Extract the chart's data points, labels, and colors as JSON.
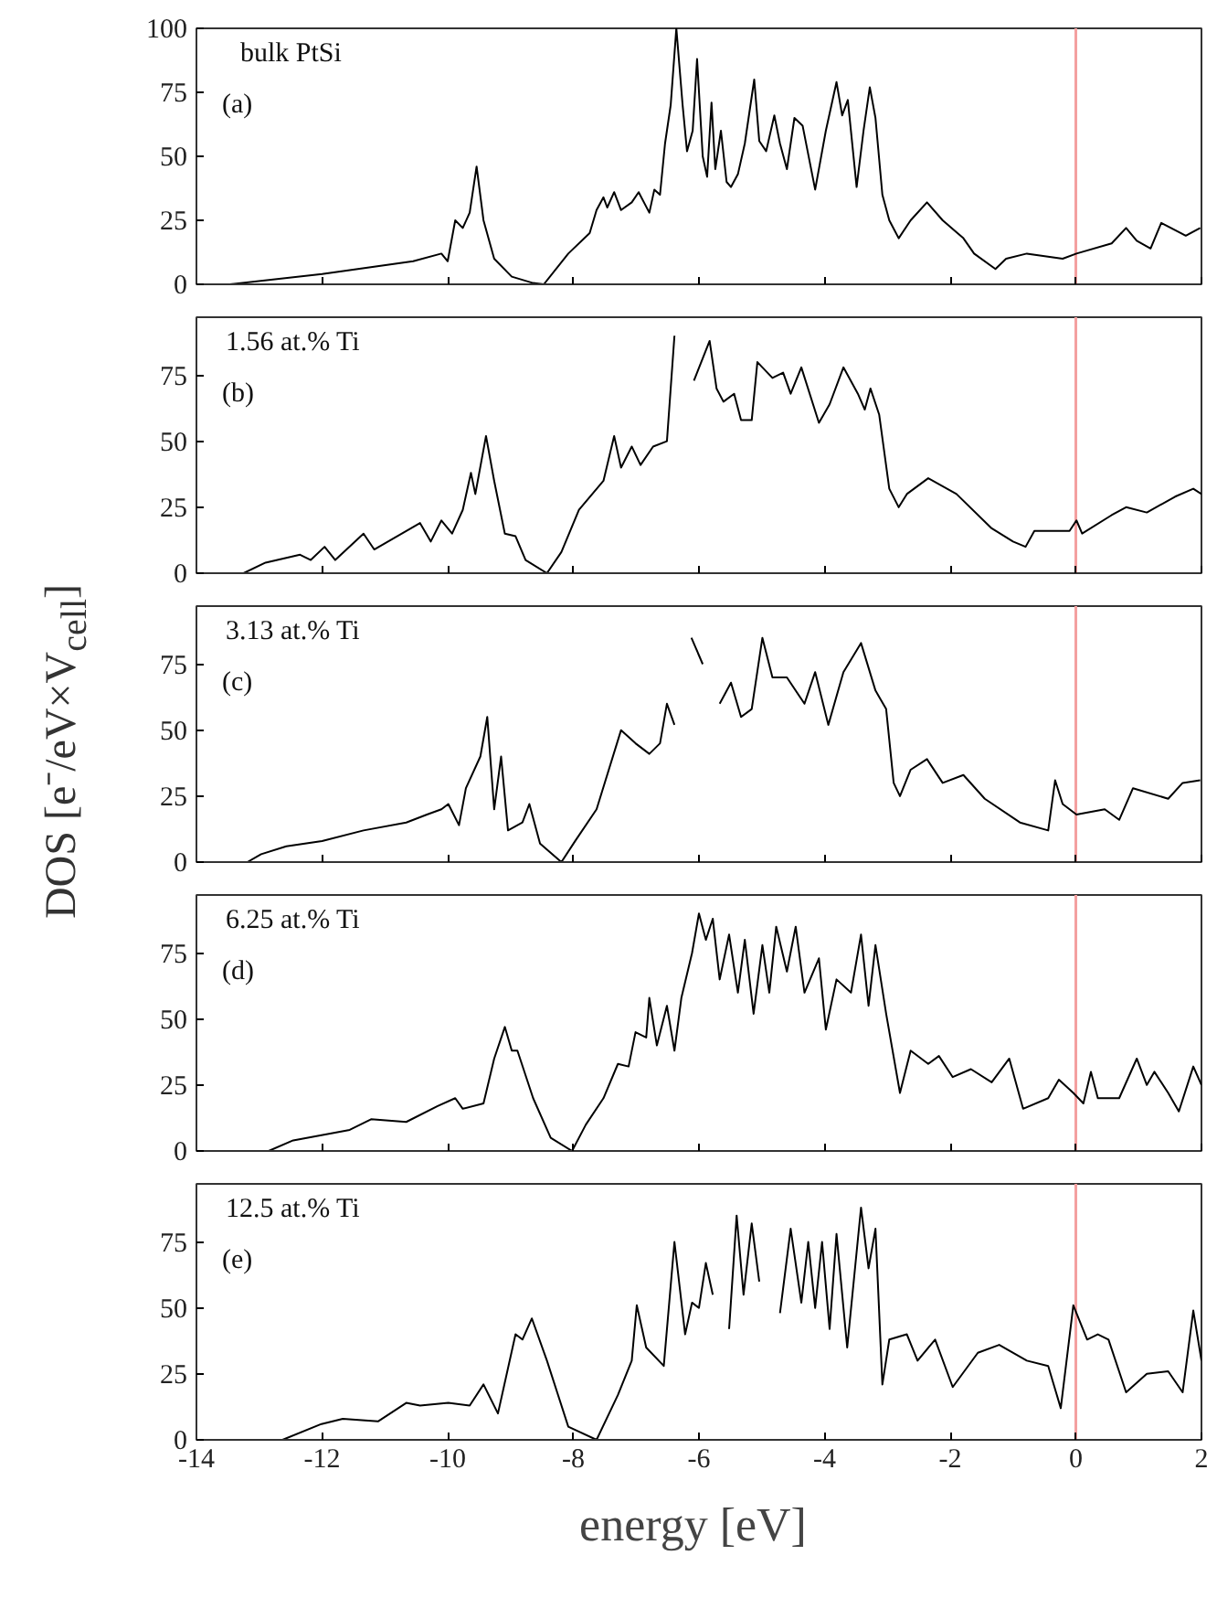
{
  "chart_data": [
    {
      "type": "line",
      "annotations": [
        "bulk PtSi",
        "(a)"
      ],
      "xlim": [
        -14,
        2
      ],
      "xticks": [
        -14,
        -12,
        -10,
        -8,
        -6,
        -4,
        -2,
        0,
        2
      ],
      "ylim": [
        0,
        100
      ],
      "yticks": [
        0,
        25,
        50,
        75,
        100
      ],
      "tick_labels": "y",
      "grid": false,
      "ref_lines": [
        {
          "axis": "x",
          "value": 0,
          "color": "#f4a0a0"
        }
      ],
      "series": [
        {
          "color": "#000000",
          "x": [
            -13.47,
            -12.0,
            -10.55,
            -10.1,
            -10.0,
            -9.88,
            -9.76,
            -9.65,
            -9.54,
            -9.43,
            -9.26,
            -8.98,
            -8.64,
            -8.47,
            -8.08,
            -7.74,
            -7.63,
            -7.52,
            -7.46,
            -7.35,
            -7.24,
            -7.07,
            -6.96,
            -6.79,
            -6.71,
            -6.62,
            -6.54,
            -6.45,
            -6.36,
            -6.26,
            -6.19,
            -6.1,
            -6.03,
            -5.94,
            -5.87,
            -5.8,
            -5.74,
            -5.65,
            -5.56,
            -5.49,
            -5.38,
            -5.27,
            -5.12,
            -5.04,
            -4.93,
            -4.8,
            -4.71,
            -4.6,
            -4.48,
            -4.35,
            -4.15,
            -3.98,
            -3.81,
            -3.72,
            -3.63,
            -3.49,
            -3.38,
            -3.28,
            -3.19,
            -3.08,
            -2.97,
            -2.82,
            -2.63,
            -2.37,
            -2.12,
            -1.79,
            -1.62,
            -1.28,
            -1.11,
            -0.78,
            -0.21,
            0.01,
            0.57,
            0.8,
            0.97,
            1.19,
            1.36,
            1.75,
            1.98
          ],
          "values": [
            0,
            4,
            9,
            12,
            9,
            25,
            22,
            28,
            46,
            25,
            10,
            3,
            0.5,
            0,
            12,
            20,
            29,
            34,
            30,
            36,
            29,
            32,
            36,
            28,
            37,
            35,
            55,
            70,
            100,
            70,
            52,
            60,
            88,
            50,
            42,
            71,
            45,
            60,
            40,
            38,
            43,
            55,
            80,
            56,
            52,
            66,
            55,
            45,
            65,
            62,
            37,
            60,
            79,
            66,
            72,
            38,
            60,
            77,
            65,
            35,
            25,
            18,
            25,
            32,
            25,
            18,
            12,
            6,
            10,
            12,
            10,
            12,
            16,
            22,
            17,
            14,
            24,
            19,
            22
          ]
        }
      ]
    },
    {
      "type": "line",
      "annotations": [
        "1.56 at.% Ti",
        "(b)"
      ],
      "xlim": [
        -14,
        2
      ],
      "xticks": [
        -14,
        -12,
        -10,
        -8,
        -6,
        -4,
        -2,
        0,
        2
      ],
      "ylim": [
        0,
        97
      ],
      "yticks": [
        0,
        25,
        50,
        75
      ],
      "tick_labels": "y",
      "grid": false,
      "ref_lines": [
        {
          "axis": "x",
          "value": 0,
          "color": "#f4a0a0"
        }
      ],
      "series": [
        {
          "color": "#000000",
          "x": [
            -13.25,
            -12.9,
            -12.35,
            -12.18,
            -11.96,
            -11.79,
            -11.34,
            -11.17,
            -10.44,
            -10.27,
            -10.1,
            -9.93,
            -9.76,
            -9.63,
            -9.56,
            -9.39,
            -9.26,
            -9.09,
            -8.92,
            -8.76,
            -8.42,
            -8.19,
            -7.91,
            -7.52,
            -7.35,
            -7.24,
            -7.07,
            -6.93,
            -6.73,
            -6.51,
            -6.39,
            -6.22,
            -6.08,
            -5.83,
            -5.72,
            -5.61,
            -5.44,
            -5.33,
            -5.16,
            -5.07,
            -4.83,
            -4.66,
            -4.54,
            -4.37,
            -4.09,
            -3.92,
            -3.7,
            -3.47,
            -3.36,
            -3.27,
            -3.13,
            -2.97,
            -2.82,
            -2.69,
            -2.35,
            -1.9,
            -1.34,
            -1.0,
            -0.8,
            -0.66,
            -0.1,
            0.01,
            0.1,
            0.57,
            0.8,
            1.13,
            1.58,
            1.87,
            2.0
          ],
          "values": [
            0,
            4,
            7,
            5,
            10,
            5,
            15,
            9,
            19,
            12,
            20,
            15,
            24,
            38,
            30,
            52,
            35,
            15,
            14,
            5,
            0,
            8,
            24,
            35,
            52,
            40,
            48,
            41,
            48,
            50,
            90,
            null,
            73,
            88,
            70,
            65,
            68,
            58,
            58,
            80,
            74,
            76,
            68,
            78,
            57,
            64,
            78,
            68,
            62,
            70,
            60,
            32,
            25,
            30,
            36,
            30,
            17,
            12,
            10,
            16,
            16,
            20,
            15,
            22,
            25,
            23,
            29,
            32,
            30
          ]
        }
      ]
    },
    {
      "type": "line",
      "annotations": [
        "3.13 at.% Ti",
        "(c)"
      ],
      "ylabel": "DOS [e⁻/eV×V$_{cell}$]",
      "xlim": [
        -14,
        2
      ],
      "xticks": [
        -14,
        -12,
        -10,
        -8,
        -6,
        -4,
        -2,
        0,
        2
      ],
      "ylim": [
        0,
        97
      ],
      "yticks": [
        0,
        25,
        50,
        75
      ],
      "tick_labels": "y",
      "grid": false,
      "ref_lines": [
        {
          "axis": "x",
          "value": 0,
          "color": "#f4a0a0"
        }
      ],
      "series": [
        {
          "color": "#000000",
          "x": [
            -13.19,
            -12.97,
            -12.57,
            -12.0,
            -11.34,
            -10.66,
            -10.33,
            -10.1,
            -9.99,
            -9.82,
            -9.71,
            -9.48,
            -9.37,
            -9.26,
            -9.15,
            -9.04,
            -8.81,
            -8.7,
            -8.53,
            -8.19,
            -7.97,
            -7.63,
            -7.24,
            -7.01,
            -6.79,
            -6.62,
            -6.51,
            -6.39,
            -6.26,
            -6.12,
            -5.94,
            -5.78,
            -5.67,
            -5.49,
            -5.33,
            -5.16,
            -4.99,
            -4.83,
            -4.6,
            -4.32,
            -4.15,
            -3.94,
            -3.7,
            -3.42,
            -3.19,
            -3.02,
            -2.9,
            -2.8,
            -2.63,
            -2.37,
            -2.12,
            -1.79,
            -1.45,
            -0.89,
            -0.44,
            -0.33,
            -0.21,
            0.01,
            0.46,
            0.69,
            0.91,
            1.47,
            1.7,
            1.98
          ],
          "values": [
            0,
            3,
            6,
            8,
            12,
            15,
            18,
            20,
            22,
            14,
            28,
            40,
            55,
            20,
            40,
            12,
            15,
            22,
            7,
            0,
            8,
            20,
            50,
            45,
            41,
            45,
            60,
            52,
            null,
            85,
            75,
            null,
            60,
            68,
            55,
            58,
            85,
            70,
            70,
            60,
            72,
            52,
            72,
            83,
            65,
            58,
            30,
            25,
            35,
            39,
            30,
            33,
            24,
            15,
            12,
            31,
            22,
            18,
            20,
            16,
            28,
            24,
            30,
            31
          ]
        }
      ]
    },
    {
      "type": "line",
      "annotations": [
        "6.25 at.% Ti",
        "(d)"
      ],
      "xlim": [
        -14,
        2
      ],
      "xticks": [
        -14,
        -12,
        -10,
        -8,
        -6,
        -4,
        -2,
        0,
        2
      ],
      "ylim": [
        0,
        97
      ],
      "yticks": [
        0,
        25,
        50,
        75
      ],
      "tick_labels": "y",
      "grid": false,
      "ref_lines": [
        {
          "axis": "x",
          "value": 0,
          "color": "#f4a0a0"
        }
      ],
      "series": [
        {
          "color": "#000000",
          "x": [
            -12.85,
            -12.46,
            -11.56,
            -11.22,
            -10.66,
            -10.16,
            -9.88,
            -9.76,
            -9.43,
            -9.26,
            -9.09,
            -8.98,
            -8.89,
            -8.64,
            -8.36,
            -8.02,
            -7.8,
            -7.52,
            -7.29,
            -7.12,
            -7.01,
            -6.84,
            -6.79,
            -6.67,
            -6.51,
            -6.39,
            -6.28,
            -6.11,
            -6.0,
            -5.89,
            -5.78,
            -5.67,
            -5.52,
            -5.38,
            -5.27,
            -5.13,
            -4.99,
            -4.88,
            -4.77,
            -4.6,
            -4.46,
            -4.32,
            -4.09,
            -3.98,
            -3.81,
            -3.58,
            -3.42,
            -3.3,
            -3.19,
            -3.02,
            -2.8,
            -2.63,
            -2.35,
            -2.18,
            -1.96,
            -1.67,
            -1.34,
            -1.06,
            -0.84,
            -0.44,
            -0.27,
            -0.04,
            0.12,
            0.24,
            0.35,
            0.69,
            0.97,
            1.13,
            1.25,
            1.47,
            1.64,
            1.87,
            2.0
          ],
          "values": [
            0,
            4,
            8,
            12,
            11,
            17,
            20,
            16,
            18,
            35,
            47,
            38,
            38,
            20,
            5,
            0,
            10,
            20,
            33,
            32,
            45,
            43,
            58,
            40,
            55,
            38,
            58,
            75,
            90,
            80,
            88,
            65,
            82,
            60,
            80,
            52,
            78,
            60,
            85,
            68,
            85,
            60,
            73,
            46,
            65,
            60,
            82,
            55,
            78,
            52,
            22,
            38,
            33,
            36,
            28,
            31,
            26,
            35,
            16,
            20,
            27,
            22,
            18,
            30,
            20,
            20,
            35,
            25,
            30,
            22,
            15,
            32,
            25
          ]
        }
      ]
    },
    {
      "type": "line",
      "annotations": [
        "12.5 at.% Ti",
        "(e)"
      ],
      "xlabel": "energy  [eV]",
      "xlim": [
        -14,
        2
      ],
      "xticks": [
        -14,
        -12,
        -10,
        -8,
        -6,
        -4,
        -2,
        0,
        2
      ],
      "ylim": [
        0,
        97
      ],
      "yticks": [
        0,
        25,
        50,
        75
      ],
      "grid": false,
      "ref_lines": [
        {
          "axis": "x",
          "value": 0,
          "color": "#f4a0a0"
        }
      ],
      "series": [
        {
          "color": "#000000",
          "x": [
            -12.63,
            -12.01,
            -11.67,
            -11.11,
            -10.66,
            -10.44,
            -9.99,
            -9.65,
            -9.43,
            -9.2,
            -8.92,
            -8.81,
            -8.66,
            -8.42,
            -8.08,
            -7.63,
            -7.29,
            -7.07,
            -6.99,
            -6.84,
            -6.56,
            -6.39,
            -6.22,
            -6.11,
            -6.0,
            -5.89,
            -5.78,
            -5.63,
            -5.52,
            -5.4,
            -5.29,
            -5.16,
            -5.04,
            -4.88,
            -4.71,
            -4.54,
            -4.37,
            -4.26,
            -4.15,
            -4.04,
            -3.92,
            -3.81,
            -3.64,
            -3.42,
            -3.3,
            -3.19,
            -3.08,
            -2.97,
            -2.69,
            -2.52,
            -2.24,
            -1.96,
            -1.56,
            -1.22,
            -0.78,
            -0.44,
            -0.24,
            -0.04,
            0.18,
            0.35,
            0.52,
            0.8,
            1.13,
            1.47,
            1.7,
            1.87,
            2.0
          ],
          "values": [
            0,
            6,
            8,
            7,
            14,
            13,
            14,
            13,
            21,
            10,
            40,
            38,
            46,
            30,
            5,
            0,
            17,
            30,
            51,
            35,
            28,
            75,
            40,
            52,
            50,
            67,
            55,
            null,
            42,
            85,
            55,
            82,
            60,
            null,
            48,
            80,
            52,
            75,
            50,
            75,
            42,
            78,
            35,
            88,
            65,
            80,
            21,
            38,
            40,
            30,
            38,
            20,
            33,
            36,
            30,
            28,
            12,
            51,
            38,
            40,
            38,
            18,
            25,
            26,
            18,
            49,
            30
          ]
        }
      ]
    }
  ]
}
